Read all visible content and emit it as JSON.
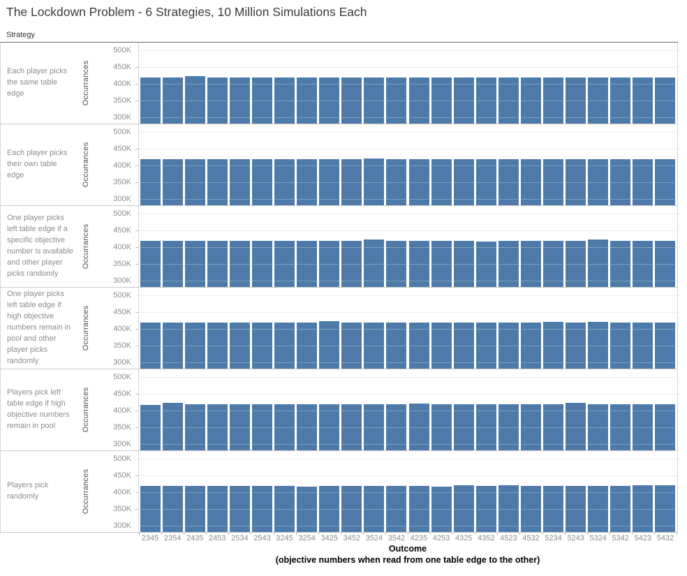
{
  "title": "The Lockdown Problem - 6 Strategies, 10 Million Simulations Each",
  "row_header": "Strategy",
  "x_axis": {
    "title": "Outcome",
    "subtitle": "(objective numbers when read from one table edge to the other)"
  },
  "colors": {
    "bar": "#4d7aa8",
    "gridline": "#e7e7e7"
  },
  "chart_data": {
    "type": "bar",
    "layout": "6 horizontal facet rows (one per strategy), shared categorical x-axis, y-axis repeated per row",
    "ylabel": "Occurrances",
    "ylim": [
      300000,
      500000
    ],
    "grid": true,
    "y_ticks": [
      {
        "label": "500K",
        "value": 500000
      },
      {
        "label": "450K",
        "value": 450000
      },
      {
        "label": "400K",
        "value": 400000
      },
      {
        "label": "350K",
        "value": 350000
      },
      {
        "label": "300K",
        "value": 300000
      }
    ],
    "categories": [
      "2345",
      "2354",
      "2435",
      "2453",
      "2534",
      "2543",
      "3245",
      "3254",
      "3425",
      "3452",
      "3524",
      "3542",
      "4235",
      "4253",
      "4325",
      "4352",
      "4523",
      "4532",
      "5234",
      "5243",
      "5324",
      "5342",
      "5423",
      "5432"
    ],
    "series": [
      {
        "name": "Each player picks the same table edge",
        "values": [
          416800,
          416500,
          420500,
          416900,
          416600,
          416800,
          416400,
          416700,
          416900,
          416600,
          416800,
          416500,
          416700,
          416900,
          416600,
          416800,
          416500,
          416700,
          416800,
          416600,
          416900,
          416500,
          416700,
          416800
        ]
      },
      {
        "name": "Each player picks their own table edge",
        "values": [
          416700,
          416900,
          416500,
          416800,
          416600,
          416700,
          416900,
          416500,
          416700,
          416800,
          419500,
          416600,
          416800,
          416500,
          416700,
          416900,
          416600,
          416800,
          416500,
          416700,
          416800,
          416600,
          416900,
          416700
        ]
      },
      {
        "name": "One player picks left table edge if a specific objective number is available and other player picks randomly",
        "values": [
          417000,
          416600,
          416800,
          416500,
          416900,
          416700,
          416500,
          416800,
          416600,
          416900,
          420200,
          416700,
          416500,
          416800,
          416600,
          414800,
          416900,
          416700,
          416500,
          416800,
          420000,
          416600,
          416800,
          416700
        ]
      },
      {
        "name": "One player picks left table edge if high objective numbers remain in pool and other player picks randomly",
        "values": [
          416700,
          416500,
          416800,
          416600,
          416900,
          416700,
          416500,
          416800,
          420300,
          416600,
          416800,
          416500,
          416700,
          416900,
          416600,
          416800,
          416500,
          416700,
          419600,
          416600,
          419600,
          416700,
          416500,
          416800
        ]
      },
      {
        "name": "Players pick left table edge if high objective numbers remain in pool",
        "values": [
          415000,
          420300,
          416700,
          416500,
          416800,
          416600,
          416900,
          416700,
          416500,
          416800,
          416600,
          416700,
          419500,
          416500,
          416800,
          416600,
          416700,
          416900,
          416500,
          420000,
          416600,
          416800,
          416700,
          416500
        ]
      },
      {
        "name": "Players pick randomly",
        "values": [
          416800,
          416600,
          416900,
          416700,
          416500,
          416800,
          416600,
          414800,
          416700,
          416900,
          416500,
          416700,
          416600,
          415200,
          418600,
          416600,
          418300,
          416700,
          416800,
          416500,
          416700,
          416600,
          418400,
          418500
        ]
      }
    ]
  }
}
